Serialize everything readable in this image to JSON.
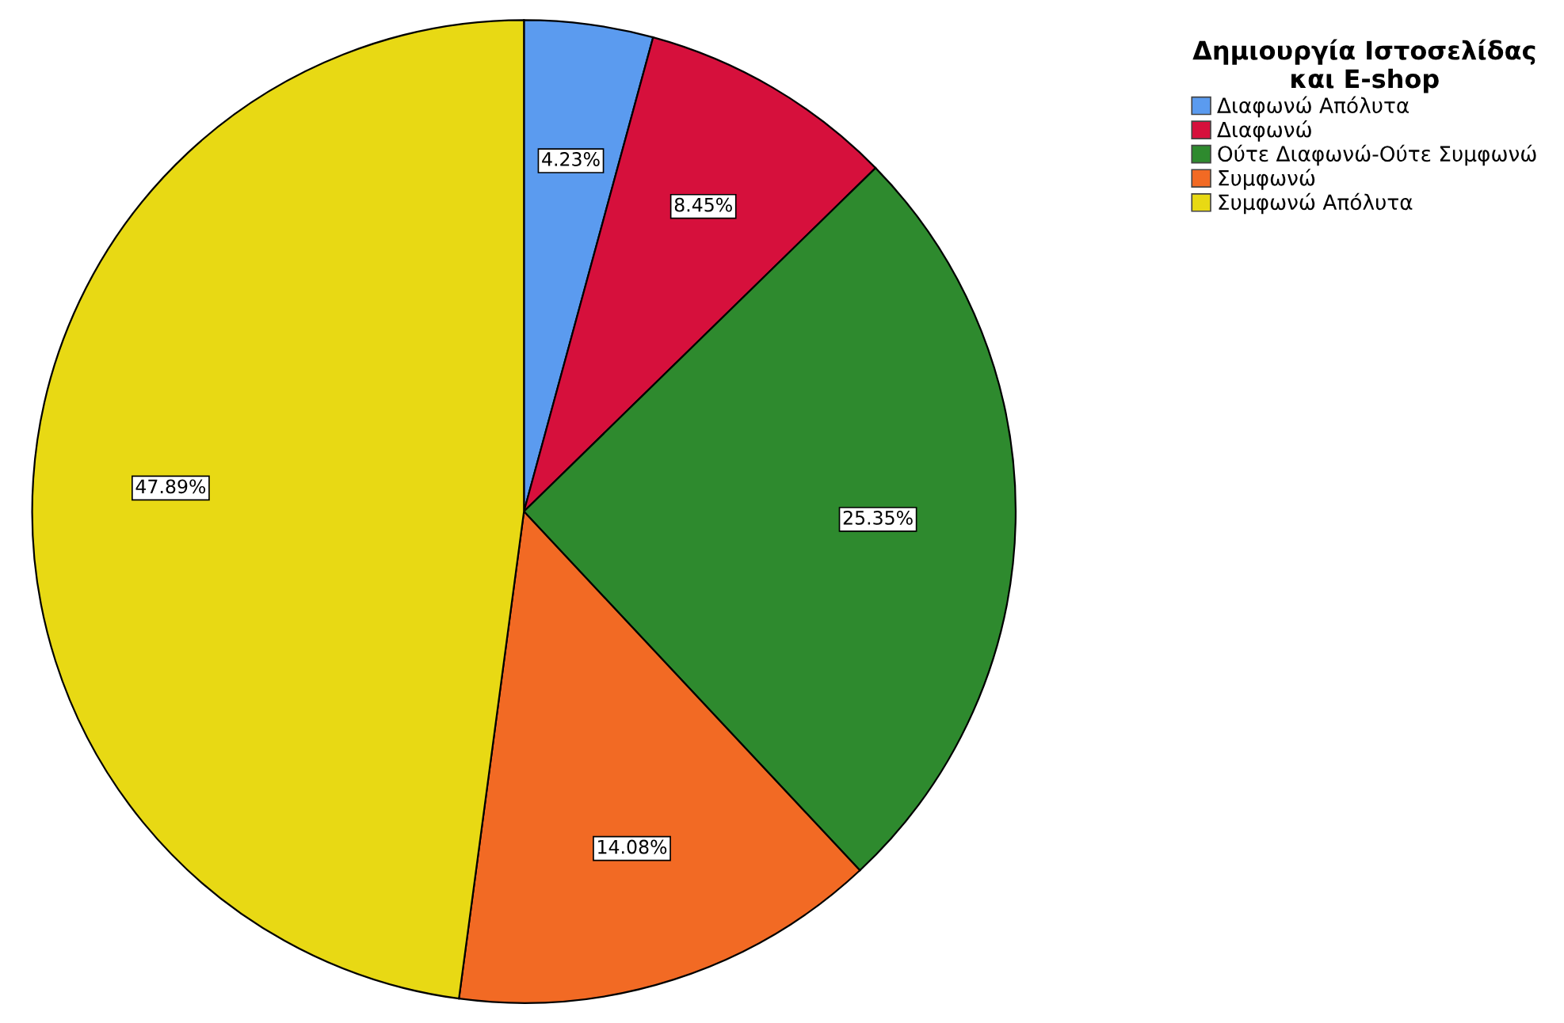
{
  "chart_data": {
    "type": "pie",
    "legend_title": "Δημιουργία Ιστοσελίδας\nκαι E-shop",
    "legend": "top right",
    "categories": [
      "Διαφωνώ Απόλυτα",
      "Διαφωνώ",
      "Ούτε Διαφωνώ-Ούτε Συμφωνώ",
      "Συμφωνώ",
      "Συμφωνώ Απόλυτα"
    ],
    "values": [
      4.23,
      8.45,
      25.35,
      14.08,
      47.89
    ],
    "colors": [
      "#5b9bef",
      "#d6103c",
      "#2e8a2e",
      "#f26a24",
      "#e8d914"
    ],
    "value_labels": [
      "4.23%",
      "8.45%",
      "25.35%",
      "14.08%",
      "47.89%"
    ]
  }
}
